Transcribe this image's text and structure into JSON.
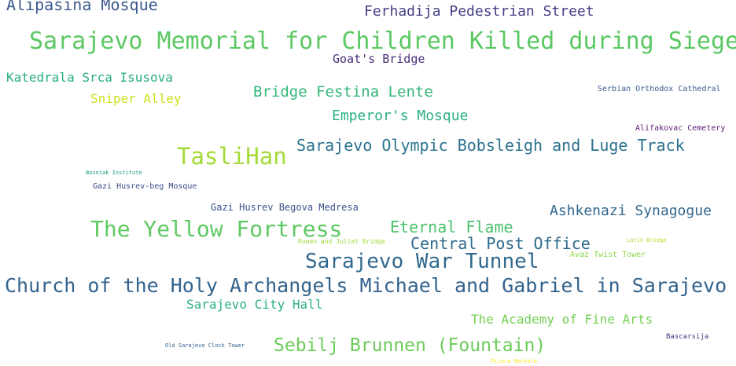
{
  "words": [
    {
      "text": "Alipasina Mosque",
      "color": "#3b5a8c"
    },
    {
      "text": "Ferhadija Pedestrian Street",
      "color": "#453f86"
    },
    {
      "text": "Sarajevo Memorial for Children Killed during Siege",
      "color": "#5cc863"
    },
    {
      "text": "Goat's Bridge",
      "color": "#47307a"
    },
    {
      "text": "Katedrala Srca Isusova",
      "color": "#27ad81"
    },
    {
      "text": "Bridge Festina Lente",
      "color": "#35b779"
    },
    {
      "text": "Sniper Alley",
      "color": "#cde11d"
    },
    {
      "text": "Serbian Orthodox Cathedral",
      "color": "#3b5a8c"
    },
    {
      "text": "Emperor's Mosque",
      "color": "#2ab07f"
    },
    {
      "text": "Alifakovac Cemetery",
      "color": "#5e1e75"
    },
    {
      "text": "Sarajevo Olympic Bobsleigh and Luge Track",
      "color": "#2c728e"
    },
    {
      "text": "TasliHan",
      "color": "#a5db36"
    },
    {
      "text": "Bosniak Institute",
      "color": "#1fa088"
    },
    {
      "text": "Gazi Husrev-beg Mosque",
      "color": "#3e4a89"
    },
    {
      "text": "Gazi Husrev Begova Medresa",
      "color": "#3b528b"
    },
    {
      "text": "Ashkenazi Synagogue",
      "color": "#31688e"
    },
    {
      "text": "Eternal Flame",
      "color": "#4ac16d"
    },
    {
      "text": "The Yellow Fortress",
      "color": "#5ec962"
    },
    {
      "text": "Latin Bridge",
      "color": "#b5de2b"
    },
    {
      "text": "Romeo and Juliet Bridge",
      "color": "#9fda3a"
    },
    {
      "text": "Central Post Office",
      "color": "#2f6b8e"
    },
    {
      "text": "Avaz Twist Tower",
      "color": "#8bd646"
    },
    {
      "text": "Sarajevo War Tunnel",
      "color": "#30698e"
    },
    {
      "text": "Church of the Holy Archangels Michael and Gabriel in Sarajevo",
      "color": "#33638d"
    },
    {
      "text": "Sarajevo City Hall",
      "color": "#2db27d"
    },
    {
      "text": "The Academy of Fine Arts",
      "color": "#75d054"
    },
    {
      "text": "Bascarsija",
      "color": "#46327e"
    },
    {
      "text": "Sebilj Brunnen (Fountain)",
      "color": "#6ccd5a"
    },
    {
      "text": "Old Sarajevo Clock Tower",
      "color": "#34608d"
    },
    {
      "text": "Pijaca Markale",
      "color": "#fde725"
    }
  ]
}
